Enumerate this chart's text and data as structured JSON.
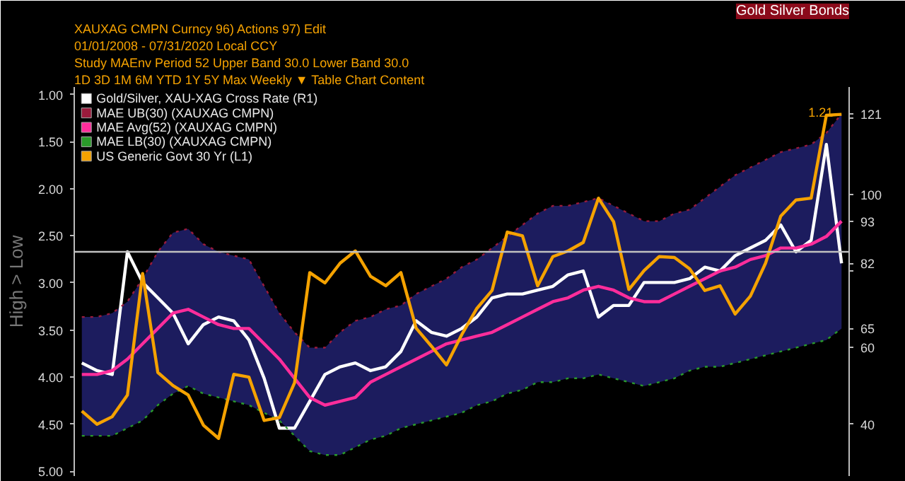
{
  "chart_data": {
    "type": "line",
    "title": "Gold Silver Bonds",
    "annotations": [
      "XAUXAG CMPN Curncy   96) Actions   97) Edit",
      "01/01/2008 - 07/31/2020   Local CCY",
      "Study MAEnv   Period 52   Upper Band 30.0   Lower Band 30.0",
      "1D  3D  1M  6M  YTD  1Y  5Y  Max   Weekly ▼   Table   Chart Content"
    ],
    "ylabel": "High > Low",
    "categories": [
      null,
      null,
      null,
      null,
      null,
      null,
      null,
      null,
      null,
      null,
      null,
      null,
      null,
      null,
      null,
      null,
      null,
      null,
      null,
      null,
      null,
      null,
      null,
      null,
      null,
      null,
      null,
      null,
      null,
      null,
      null,
      null,
      null,
      null,
      null,
      null,
      null,
      null,
      null,
      null,
      null,
      null,
      null,
      null,
      null,
      null,
      null,
      null,
      null,
      null,
      null
    ],
    "ylim": [
      5.05,
      0.92
    ],
    "yticks": [
      {
        "value": 1,
        "label": "1.00"
      },
      {
        "value": 1.5,
        "label": "1.50"
      },
      {
        "value": 2,
        "label": "2.00"
      },
      {
        "value": 2.5,
        "label": "2.50"
      },
      {
        "value": 3,
        "label": "3.00"
      },
      {
        "value": 3.5,
        "label": "3.50"
      },
      {
        "value": 4,
        "label": "4.00"
      },
      {
        "value": 4.5,
        "label": "4.50"
      },
      {
        "value": 5,
        "label": "5.00"
      }
    ],
    "y2lim": [
      26.5,
      128
    ],
    "y2ticks": [
      40,
      60,
      {
        "value": 80,
        "label": null
      },
      100,
      {
        "value": 120,
        "label": null
      }
    ],
    "tick_labels": "y",
    "grid": false,
    "legend": "top left",
    "ref_lines": [
      {
        "axis": "y2",
        "value": 85,
        "color": "#c0c0c0"
      }
    ],
    "series": [
      {
        "name": "Gold/Silver, XAU-XAG Cross Rate  (R1)",
        "axis": "y2",
        "color": "#ffffff",
        "values": [
          56,
          54,
          53,
          85,
          77,
          73,
          69,
          61,
          66,
          68,
          67,
          62,
          52,
          39,
          39,
          46,
          53,
          55,
          56,
          54,
          55,
          59,
          67,
          64,
          63,
          65,
          68,
          73,
          74,
          74,
          75,
          76,
          79,
          80,
          68,
          71,
          71,
          77,
          77,
          77,
          78,
          81,
          80,
          84,
          86,
          88,
          92,
          85,
          88,
          113,
          82
        ],
        "value_labels": [
          null,
          null,
          null,
          null,
          null,
          null,
          null,
          null,
          null,
          null,
          null,
          null,
          null,
          null,
          null,
          null,
          null,
          null,
          null,
          null,
          null,
          null,
          null,
          null,
          null,
          null,
          null,
          null,
          null,
          null,
          null,
          null,
          null,
          null,
          null,
          null,
          null,
          null,
          null,
          null,
          null,
          null,
          null,
          null,
          null,
          null,
          null,
          null,
          null,
          null,
          "82"
        ]
      },
      {
        "name": "MAE UB(30) (XAUXAG CMPN)",
        "axis": "y2",
        "color": "#9a1b3c",
        "line_style": "dotted",
        "values": [
          68,
          68,
          69,
          72,
          78,
          85,
          90,
          91,
          87,
          85,
          84,
          83,
          76,
          69,
          64,
          60,
          60,
          64,
          67,
          68,
          70,
          71,
          74,
          76,
          78,
          81,
          83,
          86,
          89,
          92,
          95,
          97,
          97,
          98,
          99,
          97,
          95,
          93,
          93,
          95,
          96,
          99,
          102,
          105,
          107,
          109,
          111,
          112,
          113,
          116,
          121
        ],
        "value_labels": [
          null,
          null,
          null,
          null,
          null,
          null,
          null,
          null,
          null,
          null,
          null,
          null,
          null,
          null,
          null,
          null,
          null,
          null,
          null,
          null,
          null,
          null,
          null,
          null,
          null,
          null,
          null,
          null,
          null,
          null,
          null,
          null,
          null,
          null,
          null,
          null,
          null,
          null,
          null,
          null,
          null,
          null,
          null,
          null,
          null,
          null,
          null,
          null,
          null,
          null,
          "121"
        ]
      },
      {
        "name": "MAE Avg(52) (XAUXAG CMPN)",
        "axis": "y2",
        "color": "#ff2d9b",
        "values": [
          53,
          53,
          54,
          57,
          61,
          65,
          69,
          70,
          68,
          66,
          65,
          65,
          61,
          57,
          52,
          47,
          45,
          46,
          47,
          51,
          53,
          55,
          57,
          59,
          61,
          62,
          63,
          64,
          66,
          68,
          70,
          72,
          73,
          75,
          76,
          75,
          73,
          72,
          72,
          74,
          76,
          78,
          80,
          81,
          83,
          84,
          86,
          86,
          87,
          89,
          93
        ],
        "lower": [
          37,
          37,
          37,
          39,
          41,
          45,
          48,
          50,
          48,
          47,
          46,
          45,
          43,
          41,
          37,
          33,
          32,
          32,
          34,
          36,
          37,
          39,
          40,
          41,
          42,
          43,
          45,
          46,
          48,
          49,
          51,
          51,
          52,
          52,
          53,
          52,
          51,
          50,
          51,
          52,
          54,
          55,
          55,
          56,
          57,
          58,
          59,
          60,
          61,
          62,
          65
        ],
        "upper": [
          68,
          68,
          69,
          72,
          78,
          85,
          90,
          91,
          87,
          85,
          84,
          83,
          76,
          69,
          64,
          60,
          60,
          64,
          67,
          68,
          70,
          71,
          74,
          76,
          78,
          81,
          83,
          86,
          89,
          92,
          95,
          97,
          97,
          98,
          99,
          97,
          95,
          93,
          93,
          95,
          96,
          99,
          102,
          105,
          107,
          109,
          111,
          112,
          113,
          116,
          121
        ],
        "value_labels": [
          null,
          null,
          null,
          null,
          null,
          null,
          null,
          null,
          null,
          null,
          null,
          null,
          null,
          null,
          null,
          null,
          null,
          null,
          null,
          null,
          null,
          null,
          null,
          null,
          null,
          null,
          null,
          null,
          null,
          null,
          null,
          null,
          null,
          null,
          null,
          null,
          null,
          null,
          null,
          null,
          null,
          null,
          null,
          null,
          null,
          null,
          null,
          null,
          null,
          null,
          "93"
        ]
      },
      {
        "name": "MAE LB(30) (XAUXAG CMPN)",
        "axis": "y2",
        "color": "#2a9a2a",
        "line_style": "dotted",
        "values": [
          37,
          37,
          37,
          39,
          41,
          45,
          48,
          50,
          48,
          47,
          46,
          45,
          43,
          41,
          37,
          33,
          32,
          32,
          34,
          36,
          37,
          39,
          40,
          41,
          42,
          43,
          45,
          46,
          48,
          49,
          51,
          51,
          52,
          52,
          53,
          52,
          51,
          50,
          51,
          52,
          54,
          55,
          55,
          56,
          57,
          58,
          59,
          60,
          61,
          62,
          65
        ],
        "value_labels": [
          null,
          null,
          null,
          null,
          null,
          null,
          null,
          null,
          null,
          null,
          null,
          null,
          null,
          null,
          null,
          null,
          null,
          null,
          null,
          null,
          null,
          null,
          null,
          null,
          null,
          null,
          null,
          null,
          null,
          null,
          null,
          null,
          null,
          null,
          null,
          null,
          null,
          null,
          null,
          null,
          null,
          null,
          null,
          null,
          null,
          null,
          null,
          null,
          null,
          null,
          "65"
        ]
      },
      {
        "name": "US Generic Govt 30 Yr  (L1)",
        "color": "#f5a200",
        "values": [
          4.36,
          4.5,
          4.42,
          4.19,
          2.9,
          3.95,
          4.09,
          4.19,
          4.51,
          4.65,
          3.97,
          4.0,
          4.46,
          4.43,
          4.06,
          2.89,
          3.0,
          2.79,
          2.66,
          2.93,
          3.03,
          2.89,
          3.48,
          3.67,
          3.87,
          3.55,
          3.27,
          3.08,
          2.46,
          2.5,
          3.03,
          2.72,
          2.66,
          2.57,
          2.1,
          2.35,
          3.07,
          2.87,
          2.72,
          2.73,
          2.85,
          3.08,
          3.03,
          3.33,
          3.14,
          2.79,
          2.29,
          2.12,
          2.1,
          1.22,
          1.21
        ],
        "value_labels": [
          null,
          null,
          null,
          null,
          null,
          null,
          null,
          null,
          null,
          null,
          null,
          null,
          null,
          null,
          null,
          null,
          null,
          null,
          null,
          null,
          null,
          null,
          null,
          null,
          null,
          null,
          null,
          null,
          null,
          null,
          null,
          null,
          null,
          null,
          null,
          null,
          null,
          null,
          null,
          null,
          null,
          null,
          null,
          null,
          null,
          null,
          null,
          null,
          null,
          null,
          "1.21"
        ]
      }
    ]
  }
}
